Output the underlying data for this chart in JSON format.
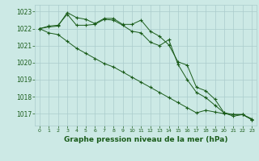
{
  "background_color": "#cce9e5",
  "grid_color": "#aacccc",
  "line_color": "#1a5c1a",
  "xlabel": "Graphe pression niveau de la mer (hPa)",
  "xlabel_fontsize": 6.5,
  "ylim": [
    1016.3,
    1023.4
  ],
  "xlim": [
    -0.5,
    23.5
  ],
  "yticks": [
    1017,
    1018,
    1019,
    1020,
    1021,
    1022,
    1023
  ],
  "xticks": [
    0,
    1,
    2,
    3,
    4,
    5,
    6,
    7,
    8,
    9,
    10,
    11,
    12,
    13,
    14,
    15,
    16,
    17,
    18,
    19,
    20,
    21,
    22,
    23
  ],
  "series": [
    [
      1022.0,
      1022.15,
      1022.2,
      1022.85,
      1022.2,
      1022.2,
      1022.25,
      1022.55,
      1022.5,
      1022.2,
      1021.85,
      1021.75,
      1021.2,
      1021.0,
      1021.35,
      1019.9,
      1019.0,
      1018.25,
      1017.95,
      1017.5,
      1017.05,
      1016.95,
      1016.95,
      1016.65
    ],
    [
      1022.0,
      1022.1,
      1022.15,
      1022.95,
      1022.65,
      1022.55,
      1022.3,
      1022.6,
      1022.6,
      1022.25,
      1022.25,
      1022.5,
      1021.85,
      1021.55,
      1021.05,
      1020.05,
      1019.85,
      1018.55,
      1018.35,
      1017.85,
      1017.05,
      1016.85,
      1016.95,
      1016.7
    ],
    [
      1022.0,
      1021.75,
      1021.65,
      1021.25,
      1020.85,
      1020.55,
      1020.25,
      1019.95,
      1019.75,
      1019.45,
      1019.15,
      1018.85,
      1018.55,
      1018.25,
      1017.95,
      1017.65,
      1017.35,
      1017.05,
      1017.2,
      1017.1,
      1017.0,
      1016.95,
      1016.95,
      1016.65
    ]
  ]
}
